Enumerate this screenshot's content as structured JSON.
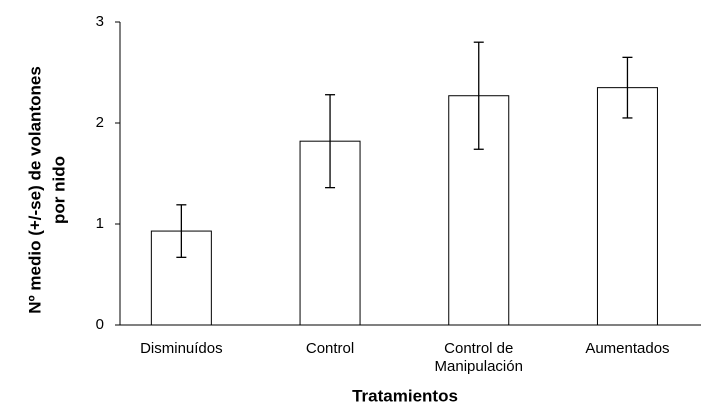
{
  "chart_data": {
    "type": "bar",
    "categories": [
      "Disminuídos",
      "Control",
      "Control de\nManipulación",
      "Aumentados"
    ],
    "values": [
      0.93,
      1.82,
      2.27,
      2.35
    ],
    "errors": [
      0.26,
      0.46,
      0.53,
      0.3
    ],
    "color": "#ffffff",
    "ylim": [
      0,
      3
    ],
    "yticks": [
      0,
      1,
      2,
      3
    ],
    "grid": false,
    "x_label": "Tratamientos",
    "y_label": [
      "Nº medio (+/-se) de volantones",
      "por nido"
    ]
  }
}
